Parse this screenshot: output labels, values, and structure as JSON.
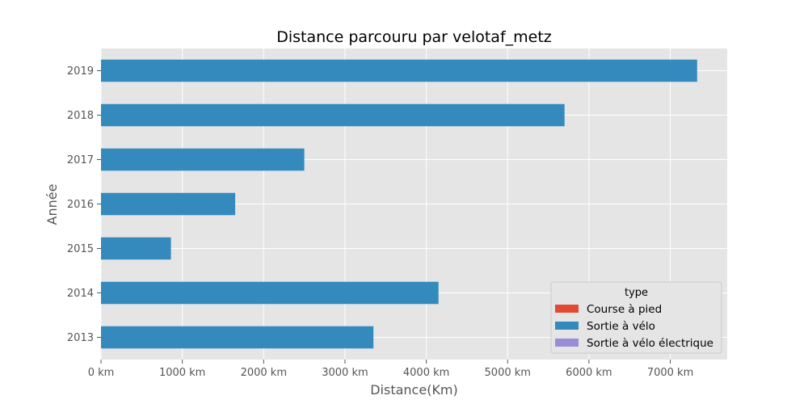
{
  "chart_data": {
    "type": "bar",
    "orientation": "horizontal",
    "title": "Distance parcouru par velotaf_metz",
    "xlabel": "Distance(Km)",
    "ylabel": "Année",
    "categories": [
      "2013",
      "2014",
      "2015",
      "2016",
      "2017",
      "2018",
      "2019"
    ],
    "series": [
      {
        "name": "Course à pied",
        "color": "#E24A33",
        "values": [
          0,
          0,
          0,
          0,
          0,
          0,
          0
        ]
      },
      {
        "name": "Sortie à vélo",
        "color": "#348ABD",
        "values": [
          3350,
          4150,
          860,
          1650,
          2500,
          5700,
          7330
        ]
      },
      {
        "name": "Sortie à vélo électrique",
        "color": "#988ED5",
        "values": [
          0,
          0,
          0,
          0,
          0,
          0,
          0
        ]
      }
    ],
    "xlim": [
      0,
      7700
    ],
    "xticks": [
      0,
      1000,
      2000,
      3000,
      4000,
      5000,
      6000,
      7000
    ],
    "xtick_labels": [
      "0 km",
      "1000 km",
      "2000 km",
      "3000 km",
      "4000 km",
      "5000 km",
      "6000 km",
      "7000 km"
    ],
    "grid": true,
    "legend": {
      "title": "type",
      "placement": "bottom-right"
    },
    "background": "#E5E5E5"
  }
}
